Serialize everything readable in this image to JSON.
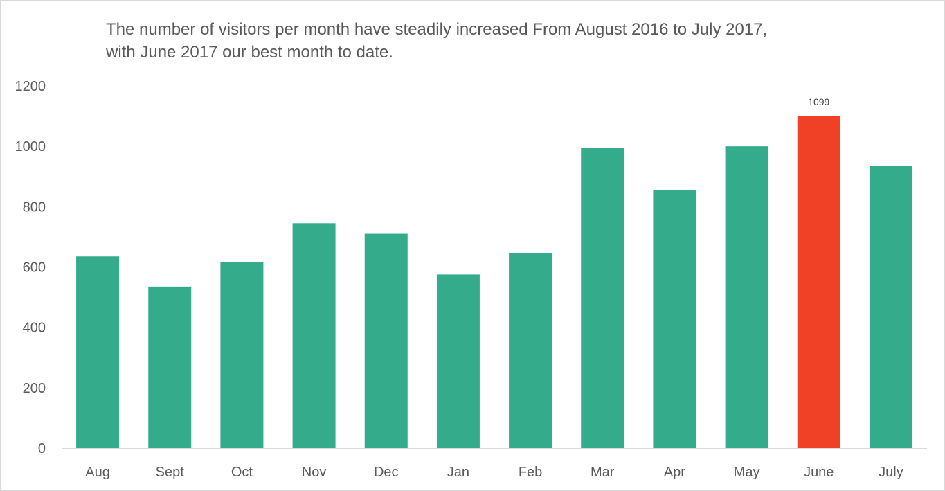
{
  "chart_data": {
    "type": "bar",
    "title_lines": [
      "The number of visitors per month have steadily increased From August 2016 to July 2017,",
      "with June 2017 our best month to date."
    ],
    "xlabel": "",
    "ylabel": "",
    "categories": [
      "Aug",
      "Sept",
      "Oct",
      "Nov",
      "Dec",
      "Jan",
      "Feb",
      "Mar",
      "Apr",
      "May",
      "June",
      "July"
    ],
    "values": [
      635,
      535,
      615,
      745,
      710,
      575,
      645,
      995,
      855,
      1000,
      1099,
      935
    ],
    "ylim": [
      0,
      1200
    ],
    "yticks": [
      0,
      200,
      400,
      600,
      800,
      1000,
      1200
    ],
    "grid": false,
    "legend": "none",
    "colors": {
      "default_bar": "#34AC8C",
      "highlight_bar": "#F04126",
      "axis_line": "#d9d9d9"
    },
    "highlight_index": 10,
    "data_labels": [
      {
        "category": "June",
        "text": "1099"
      }
    ]
  }
}
